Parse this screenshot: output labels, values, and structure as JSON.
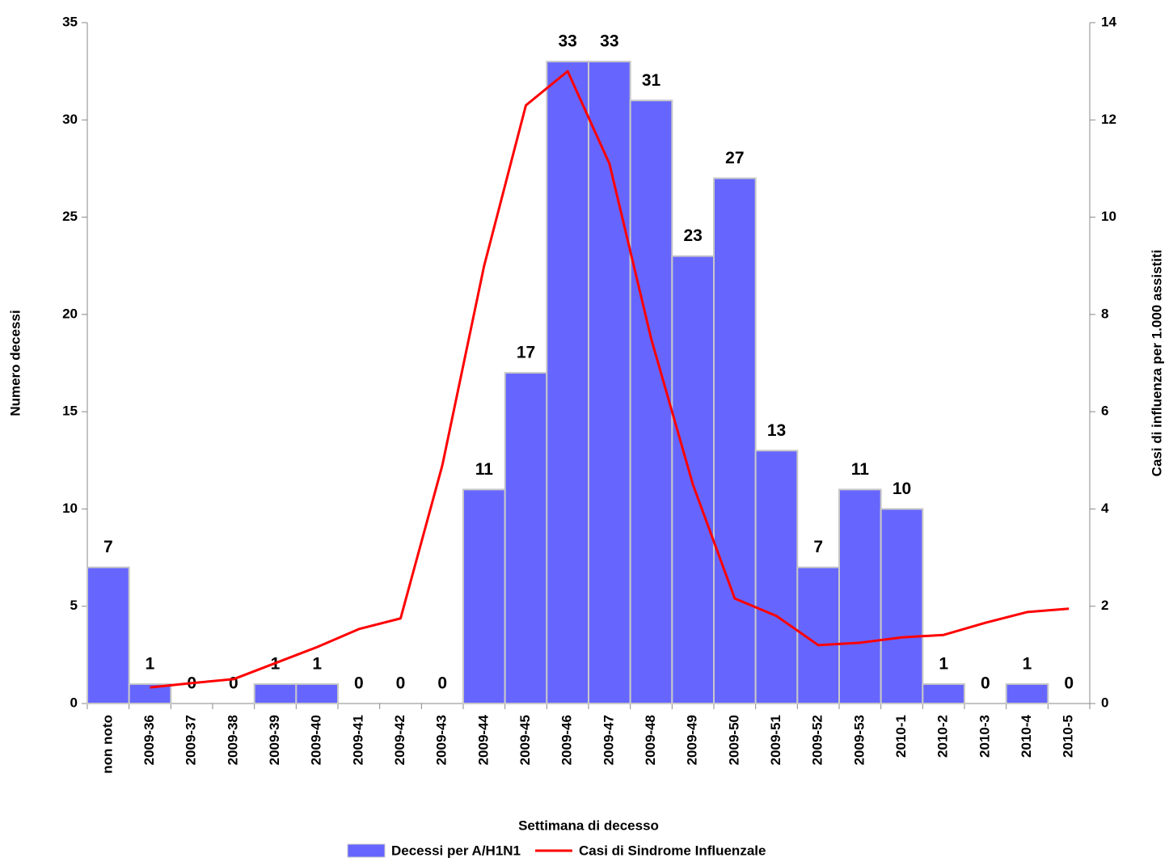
{
  "chart_data": {
    "type": "bar",
    "x_label": "Settimana di decesso",
    "y_label": "Numero decessi",
    "y2_label": "Casi di influenza per 1.000 assistiti",
    "categories": [
      "non noto",
      "2009-36",
      "2009-37",
      "2009-38",
      "2009-39",
      "2009-40",
      "2009-41",
      "2009-42",
      "2009-43",
      "2009-44",
      "2009-45",
      "2009-46",
      "2009-47",
      "2009-48",
      "2009-49",
      "2009-50",
      "2009-51",
      "2009-52",
      "2009-53",
      "2010-1",
      "2010-2",
      "2010-3",
      "2010-4",
      "2010-5"
    ],
    "series": [
      {
        "name": "Decessi per A/H1N1",
        "type": "bar",
        "color": "#6666ff",
        "values": [
          7,
          1,
          0,
          0,
          1,
          1,
          0,
          0,
          0,
          11,
          17,
          33,
          33,
          31,
          23,
          27,
          13,
          7,
          11,
          10,
          1,
          0,
          1,
          0
        ]
      },
      {
        "name": "Casi di Sindrome Influenzale",
        "type": "line",
        "color": "#ff0000",
        "axis": "y2",
        "values": [
          null,
          0.33,
          0.42,
          0.5,
          0.83,
          1.16,
          1.53,
          1.75,
          4.9,
          9.0,
          12.3,
          13.0,
          11.1,
          7.5,
          4.5,
          2.16,
          1.8,
          1.2,
          1.25,
          1.36,
          1.41,
          1.66,
          1.88,
          1.95
        ]
      }
    ],
    "ylim": [
      0,
      35
    ],
    "yticks": [
      0,
      5,
      10,
      15,
      20,
      25,
      30,
      35
    ],
    "y2lim": [
      0,
      14
    ],
    "y2ticks": [
      0,
      2,
      4,
      6,
      8,
      10,
      12,
      14
    ]
  }
}
